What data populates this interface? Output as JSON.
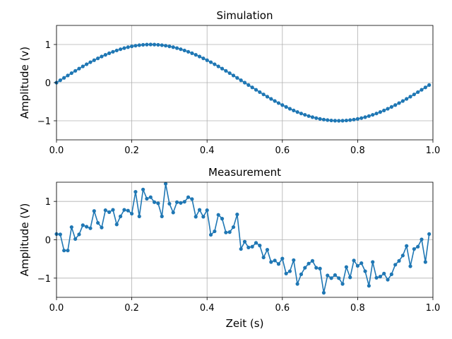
{
  "chart_data": [
    {
      "type": "line",
      "title": "Simulation",
      "xlabel": "",
      "ylabel": "Amplitude (v)",
      "xlim": [
        0,
        1
      ],
      "ylim": [
        -1.5,
        1.5
      ],
      "xticks": [
        0.0,
        0.2,
        0.4,
        0.6,
        0.8,
        1.0
      ],
      "xtick_labels": [
        "0.0",
        "0.2",
        "0.4",
        "0.6",
        "0.8",
        "1.0"
      ],
      "yticks": [
        -1,
        0,
        1
      ],
      "ytick_labels": [
        "−1",
        "0",
        "1"
      ],
      "grid": true,
      "color": "#1f77b4",
      "x": [
        0.0,
        0.01,
        0.02,
        0.03,
        0.04,
        0.05,
        0.06,
        0.07,
        0.08,
        0.09,
        0.1,
        0.11,
        0.12,
        0.13,
        0.14,
        0.15,
        0.16,
        0.17,
        0.18,
        0.19,
        0.2,
        0.21,
        0.22,
        0.23,
        0.24,
        0.25,
        0.26,
        0.27,
        0.28,
        0.29,
        0.3,
        0.31,
        0.32,
        0.33,
        0.34,
        0.35,
        0.36,
        0.37,
        0.38,
        0.39,
        0.4,
        0.41,
        0.42,
        0.43,
        0.44,
        0.45,
        0.46,
        0.47,
        0.48,
        0.49,
        0.5,
        0.51,
        0.52,
        0.53,
        0.54,
        0.55,
        0.56,
        0.57,
        0.58,
        0.59,
        0.6,
        0.61,
        0.62,
        0.63,
        0.64,
        0.65,
        0.66,
        0.67,
        0.68,
        0.69,
        0.7,
        0.71,
        0.72,
        0.73,
        0.74,
        0.75,
        0.76,
        0.77,
        0.78,
        0.79,
        0.8,
        0.81,
        0.82,
        0.83,
        0.84,
        0.85,
        0.86,
        0.87,
        0.88,
        0.89,
        0.9,
        0.91,
        0.92,
        0.93,
        0.94,
        0.95,
        0.96,
        0.97,
        0.98,
        0.99
      ],
      "y": [
        0.0,
        0.063,
        0.125,
        0.187,
        0.249,
        0.309,
        0.368,
        0.426,
        0.482,
        0.536,
        0.588,
        0.637,
        0.685,
        0.729,
        0.771,
        0.809,
        0.844,
        0.876,
        0.905,
        0.93,
        0.951,
        0.969,
        0.982,
        0.992,
        0.998,
        1.0,
        0.998,
        0.992,
        0.982,
        0.969,
        0.951,
        0.93,
        0.905,
        0.876,
        0.844,
        0.809,
        0.771,
        0.729,
        0.685,
        0.637,
        0.588,
        0.536,
        0.482,
        0.426,
        0.368,
        0.309,
        0.249,
        0.187,
        0.125,
        0.063,
        0.0,
        -0.063,
        -0.125,
        -0.187,
        -0.249,
        -0.309,
        -0.368,
        -0.426,
        -0.482,
        -0.536,
        -0.588,
        -0.637,
        -0.685,
        -0.729,
        -0.771,
        -0.809,
        -0.844,
        -0.876,
        -0.905,
        -0.93,
        -0.951,
        -0.969,
        -0.982,
        -0.992,
        -0.998,
        -1.0,
        -0.998,
        -0.992,
        -0.982,
        -0.969,
        -0.951,
        -0.93,
        -0.905,
        -0.876,
        -0.844,
        -0.809,
        -0.771,
        -0.729,
        -0.685,
        -0.637,
        -0.588,
        -0.536,
        -0.482,
        -0.426,
        -0.368,
        -0.309,
        -0.249,
        -0.187,
        -0.125,
        -0.063
      ]
    },
    {
      "type": "line",
      "title": "Measurement",
      "xlabel": "Zeit (s)",
      "ylabel": "Amplitude (V)",
      "xlim": [
        0,
        1
      ],
      "ylim": [
        -1.5,
        1.5
      ],
      "xticks": [
        0.0,
        0.2,
        0.4,
        0.6,
        0.8,
        1.0
      ],
      "xtick_labels": [
        "0.0",
        "0.2",
        "0.4",
        "0.6",
        "0.8",
        "1.0"
      ],
      "yticks": [
        -1,
        0,
        1
      ],
      "ytick_labels": [
        "−1",
        "0",
        "1"
      ],
      "grid": true,
      "color": "#1f77b4",
      "x": [
        0.0,
        0.01,
        0.02,
        0.03,
        0.04,
        0.05,
        0.06,
        0.07,
        0.08,
        0.09,
        0.1,
        0.11,
        0.12,
        0.13,
        0.14,
        0.15,
        0.16,
        0.17,
        0.18,
        0.19,
        0.2,
        0.21,
        0.22,
        0.23,
        0.24,
        0.25,
        0.26,
        0.27,
        0.28,
        0.29,
        0.3,
        0.31,
        0.32,
        0.33,
        0.34,
        0.35,
        0.36,
        0.37,
        0.38,
        0.39,
        0.4,
        0.41,
        0.42,
        0.43,
        0.44,
        0.45,
        0.46,
        0.47,
        0.48,
        0.49,
        0.5,
        0.51,
        0.52,
        0.53,
        0.54,
        0.55,
        0.56,
        0.57,
        0.58,
        0.59,
        0.6,
        0.61,
        0.62,
        0.63,
        0.64,
        0.65,
        0.66,
        0.67,
        0.68,
        0.69,
        0.7,
        0.71,
        0.72,
        0.73,
        0.74,
        0.75,
        0.76,
        0.77,
        0.78,
        0.79,
        0.8,
        0.81,
        0.82,
        0.83,
        0.84,
        0.85,
        0.86,
        0.87,
        0.88,
        0.89,
        0.9,
        0.91,
        0.92,
        0.93,
        0.94,
        0.95,
        0.96,
        0.97,
        0.98,
        0.99
      ],
      "y": [
        0.15,
        0.14,
        -0.28,
        -0.28,
        0.33,
        0.02,
        0.14,
        0.38,
        0.34,
        0.3,
        0.75,
        0.44,
        0.32,
        0.77,
        0.72,
        0.78,
        0.4,
        0.61,
        0.78,
        0.76,
        0.68,
        1.25,
        0.61,
        1.31,
        1.07,
        1.11,
        0.98,
        0.95,
        0.61,
        1.46,
        0.94,
        0.71,
        0.98,
        0.96,
        0.99,
        1.11,
        1.06,
        0.6,
        0.78,
        0.6,
        0.77,
        0.13,
        0.22,
        0.65,
        0.55,
        0.19,
        0.2,
        0.33,
        0.66,
        -0.24,
        -0.05,
        -0.2,
        -0.18,
        -0.08,
        -0.15,
        -0.46,
        -0.26,
        -0.58,
        -0.54,
        -0.63,
        -0.49,
        -0.88,
        -0.82,
        -0.53,
        -1.15,
        -0.9,
        -0.73,
        -0.62,
        -0.55,
        -0.73,
        -0.75,
        -1.38,
        -0.93,
        -1.0,
        -0.92,
        -1.0,
        -1.15,
        -0.71,
        -0.98,
        -0.54,
        -0.68,
        -0.61,
        -0.82,
        -1.2,
        -0.58,
        -0.99,
        -0.96,
        -0.88,
        -1.04,
        -0.9,
        -0.65,
        -0.55,
        -0.41,
        -0.16,
        -0.69,
        -0.24,
        -0.18,
        0.01,
        -0.58,
        0.15
      ]
    }
  ]
}
